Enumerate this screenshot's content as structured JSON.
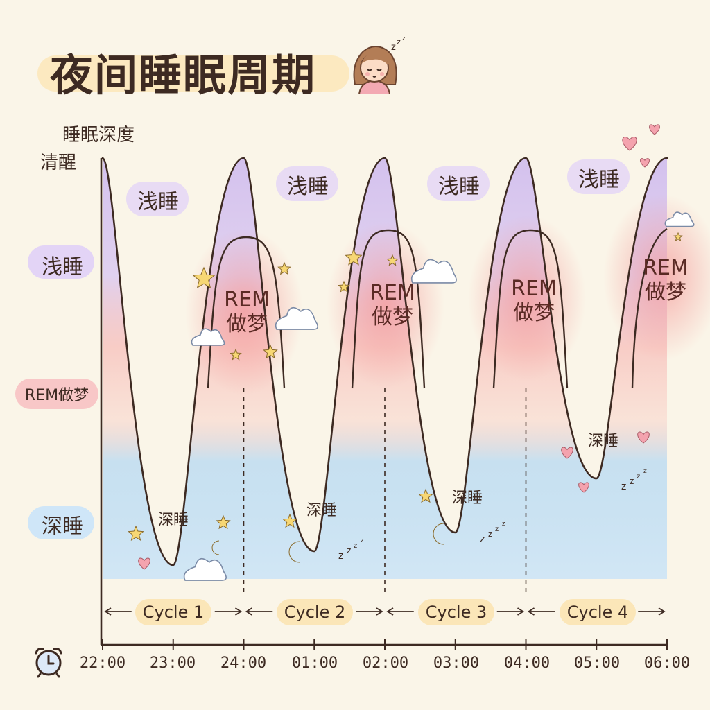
{
  "title": "夜间睡眠周期",
  "y_axis": {
    "title": "睡眠深度",
    "levels": [
      "清醒",
      "浅睡",
      "REM做梦",
      "深睡"
    ]
  },
  "x_axis": {
    "ticks": [
      "22:00",
      "23:00",
      "24:00",
      "01:00",
      "02:00",
      "03:00",
      "04:00",
      "05:00",
      "06:00"
    ]
  },
  "cycles": [
    "Cycle 1",
    "Cycle 2",
    "Cycle 3",
    "Cycle 4"
  ],
  "stage_labels": {
    "light": "浅睡",
    "rem_line1": "REM",
    "rem_line2": "做梦",
    "deep": "深睡"
  },
  "colors": {
    "light": "#cdb8ee",
    "rem": "#f6a3a3",
    "deep": "#a9d4f5",
    "ink": "#3d2a22",
    "highlight": "#fbe6b8"
  },
  "chart_data": {
    "type": "line",
    "title": "夜间睡眠周期",
    "ylabel": "睡眠深度",
    "xlabel": "",
    "y_categories": [
      "清醒",
      "浅睡",
      "REM做梦",
      "深睡"
    ],
    "x_ticks": [
      "22:00",
      "23:00",
      "24:00",
      "01:00",
      "02:00",
      "03:00",
      "04:00",
      "05:00",
      "06:00"
    ],
    "cycles": [
      {
        "name": "Cycle 1",
        "start": "22:00",
        "end": "24:00"
      },
      {
        "name": "Cycle 2",
        "start": "24:00",
        "end": "02:00"
      },
      {
        "name": "Cycle 3",
        "start": "02:00",
        "end": "04:00"
      },
      {
        "name": "Cycle 4",
        "start": "04:00",
        "end": "06:00"
      }
    ],
    "series": [
      {
        "name": "",
        "x": [
          22.0,
          23.0,
          24.0,
          25.0,
          26.0,
          27.0,
          28.0,
          29.0,
          30.0
        ],
        "y": [
          "清醒",
          "深睡",
          "清醒",
          "深睡",
          "清醒",
          "深睡",
          "清醒",
          "深睡",
          "清醒"
        ]
      }
    ]
  }
}
